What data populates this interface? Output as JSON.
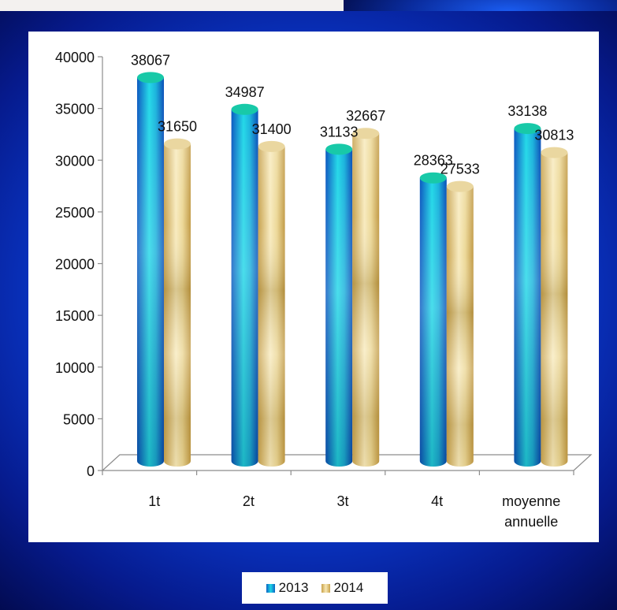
{
  "chart_data": {
    "type": "bar",
    "categories": [
      "1t",
      "2t",
      "3t",
      "4t",
      "moyenne annuelle"
    ],
    "category_lines": [
      [
        "1t"
      ],
      [
        "2t"
      ],
      [
        "3t"
      ],
      [
        "4t"
      ],
      [
        "moyenne",
        "annuelle"
      ]
    ],
    "series": [
      {
        "name": "2013",
        "values": [
          38067,
          34987,
          31133,
          28363,
          33138
        ],
        "labels": [
          "38067",
          "34987",
          "31133",
          "28363",
          "33138"
        ]
      },
      {
        "name": "2014",
        "values": [
          31650,
          31400,
          32667,
          27533,
          30813
        ],
        "labels": [
          "31650",
          "31400",
          "32667",
          "27533",
          "30813"
        ]
      }
    ],
    "ylim": [
      0,
      40000
    ],
    "yticks": [
      0,
      5000,
      10000,
      15000,
      20000,
      25000,
      30000,
      35000,
      40000
    ],
    "ytick_labels": [
      "0",
      "5000",
      "10000",
      "15000",
      "20000",
      "25000",
      "30000",
      "35000",
      "40000"
    ],
    "title": "",
    "xlabel": "",
    "ylabel": "",
    "grid": false,
    "legend": "bottom",
    "style": "3d-cylinder",
    "colors": {
      "2013": "#1aa9d6",
      "2014": "#e6cf86",
      "background": "#0a3fd9"
    }
  }
}
